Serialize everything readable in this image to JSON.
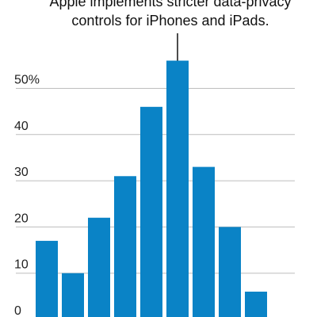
{
  "annotation": {
    "line1": "Apple implements stricter data-privacy",
    "line2": "controls for iPhones and iPads."
  },
  "chart_data": {
    "type": "bar",
    "title": "",
    "xlabel": "",
    "ylabel": "",
    "ylim": [
      0,
      60
    ],
    "yticks": [
      0,
      10,
      20,
      30,
      40,
      50
    ],
    "ytick_labels": [
      "0",
      "10",
      "20",
      "30",
      "40",
      "50%"
    ],
    "values": [
      17,
      10,
      22,
      31,
      46,
      56,
      33,
      20,
      6
    ],
    "bar_color": "#0a83c6",
    "grid_color": "#bdbdbd",
    "annotated_bar_index": 5,
    "grid": true
  }
}
